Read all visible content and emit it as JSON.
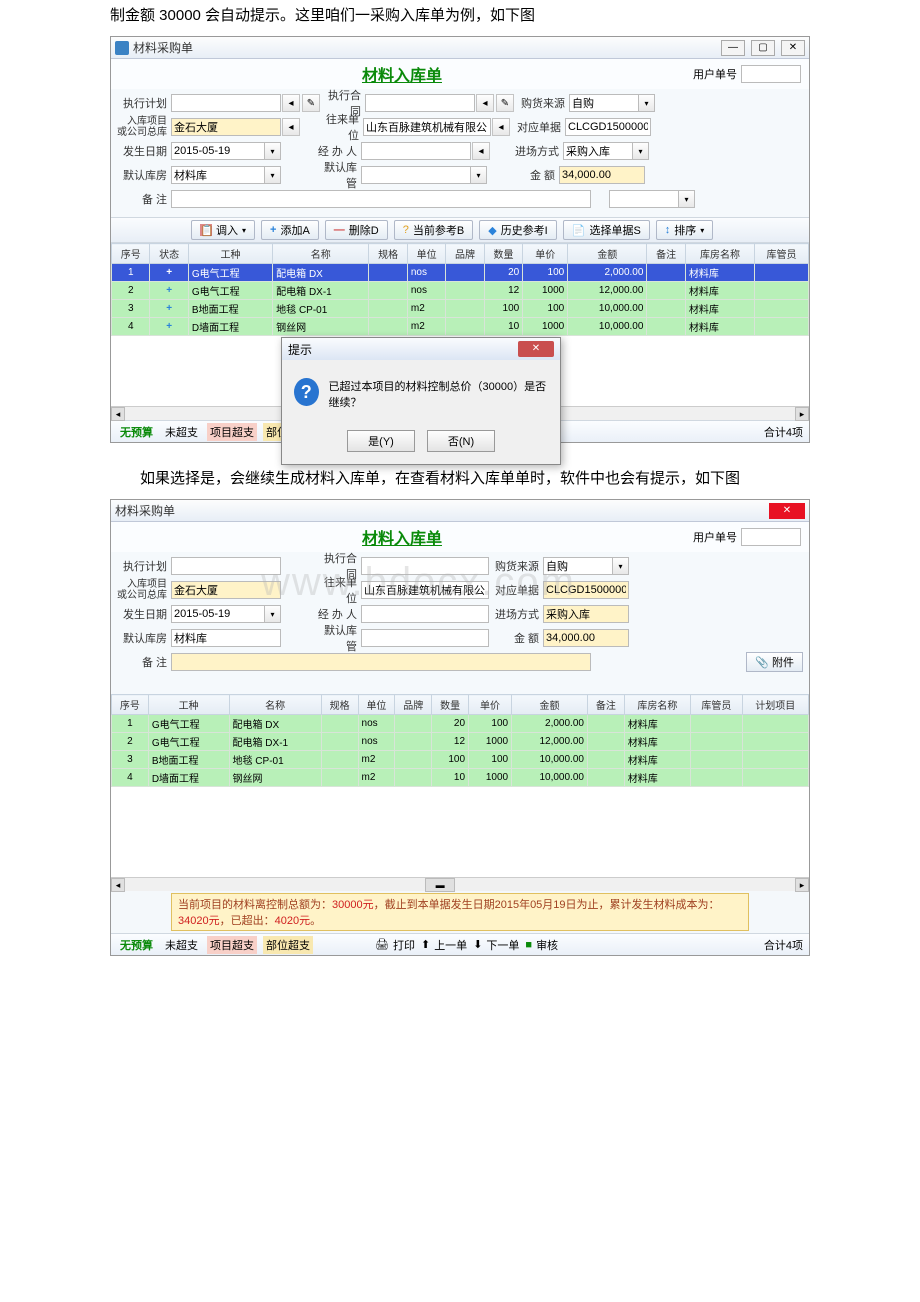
{
  "doc": {
    "para1": "制金额 30000 会自动提示。这里咱们一采购入库单为例，如下图",
    "para2": "如果选择是，会继续生成材料入库单，在查看材料入库单单时，软件中也会有提示，如下图"
  },
  "win1": {
    "title": "材料采购单",
    "page_title": "材料入库单",
    "user_no_label": "用户单号",
    "form": {
      "plan_label": "执行计划",
      "plan": "",
      "contract_label": "执行合同",
      "contract": "",
      "source_label": "购货来源",
      "source": "自购",
      "proj_label": "入库项目\n或公司总库",
      "proj": "金石大厦",
      "vendor_label": "往来单位",
      "vendor": "山东百脉建筑机械有限公司",
      "doc_label": "对应单据",
      "doc": "CLCGD150000003",
      "date_label": "发生日期",
      "date": "2015-05-19",
      "handler_label": "经 办 人",
      "handler": "",
      "intype_label": "进场方式",
      "intype": "采购入库",
      "store_label": "默认库房",
      "store": "材料库",
      "keeper_label": "默认库管",
      "keeper": "",
      "amount_label": "金    额",
      "amount": "34,000.00",
      "remark_label": "备    注",
      "remark": ""
    },
    "toolbar": {
      "import": "调入",
      "add": "添加A",
      "del": "删除D",
      "curref": "当前参考B",
      "histref": "历史参考I",
      "selbill": "选择单据S",
      "sort": "排序"
    },
    "cols": [
      "序号",
      "状态",
      "工种",
      "名称",
      "规格",
      "单位",
      "品牌",
      "数量",
      "单价",
      "金额",
      "备注",
      "库房名称",
      "库管员"
    ],
    "rows": [
      {
        "no": "1",
        "status": "+",
        "type": "G电气工程",
        "name": "配电箱 DX",
        "spec": "",
        "unit": "nos",
        "brand": "",
        "qty": "20",
        "price": "100",
        "amt": "2,000.00",
        "remark": "",
        "store": "材料库",
        "keeper": ""
      },
      {
        "no": "2",
        "status": "+",
        "type": "G电气工程",
        "name": "配电箱 DX-1",
        "spec": "",
        "unit": "nos",
        "brand": "",
        "qty": "12",
        "price": "1000",
        "amt": "12,000.00",
        "remark": "",
        "store": "材料库",
        "keeper": ""
      },
      {
        "no": "3",
        "status": "+",
        "type": "B地面工程",
        "name": "地毯 CP-01",
        "spec": "",
        "unit": "m2",
        "brand": "",
        "qty": "100",
        "price": "100",
        "amt": "10,000.00",
        "remark": "",
        "store": "材料库",
        "keeper": ""
      },
      {
        "no": "4",
        "status": "+",
        "type": "D墙面工程",
        "name": "钢丝网",
        "spec": "",
        "unit": "m2",
        "brand": "",
        "qty": "10",
        "price": "1000",
        "amt": "10,000.00",
        "remark": "",
        "store": "材料库",
        "keeper": ""
      }
    ],
    "tags": {
      "t1": "无预算",
      "t2": "未超支",
      "t3": "项目超支",
      "t4": "部位超支"
    },
    "total": "合计4项",
    "dialog": {
      "title": "提示",
      "msg": "已超过本项目的材料控制总价（30000）是否继续？",
      "yes": "是(Y)",
      "no": "否(N)"
    }
  },
  "win2": {
    "title": "材料采购单",
    "page_title": "材料入库单",
    "user_no_label": "用户单号",
    "form": {
      "plan_label": "执行计划",
      "plan": "",
      "contract_label": "执行合同",
      "contract": "",
      "source_label": "购货来源",
      "source": "自购",
      "proj_label": "入库项目\n或公司总库",
      "proj": "金石大厦",
      "vendor_label": "往来单位",
      "vendor": "山东百脉建筑机械有限公司",
      "doc_label": "对应单据",
      "doc": "CLCGD150000003",
      "date_label": "发生日期",
      "date": "2015-05-19",
      "handler_label": "经 办 人",
      "handler": "",
      "intype_label": "进场方式",
      "intype": "采购入库",
      "store_label": "默认库房",
      "store": "材料库",
      "keeper_label": "默认库管",
      "keeper": "",
      "amount_label": "金    额",
      "amount": "34,000.00",
      "remark_label": "备    注",
      "remark": "",
      "attach": "附件"
    },
    "cols": [
      "序号",
      "工种",
      "名称",
      "规格",
      "单位",
      "品牌",
      "数量",
      "单价",
      "金额",
      "备注",
      "库房名称",
      "库管员",
      "计划项目"
    ],
    "rows": [
      {
        "no": "1",
        "type": "G电气工程",
        "name": "配电箱 DX",
        "spec": "",
        "unit": "nos",
        "brand": "",
        "qty": "20",
        "price": "100",
        "amt": "2,000.00",
        "remark": "",
        "store": "材料库",
        "keeper": "",
        "plan": ""
      },
      {
        "no": "2",
        "type": "G电气工程",
        "name": "配电箱 DX-1",
        "spec": "",
        "unit": "nos",
        "brand": "",
        "qty": "12",
        "price": "1000",
        "amt": "12,000.00",
        "remark": "",
        "store": "材料库",
        "keeper": "",
        "plan": ""
      },
      {
        "no": "3",
        "type": "B地面工程",
        "name": "地毯 CP-01",
        "spec": "",
        "unit": "m2",
        "brand": "",
        "qty": "100",
        "price": "100",
        "amt": "10,000.00",
        "remark": "",
        "store": "材料库",
        "keeper": "",
        "plan": ""
      },
      {
        "no": "4",
        "type": "D墙面工程",
        "name": "钢丝网",
        "spec": "",
        "unit": "m2",
        "brand": "",
        "qty": "10",
        "price": "1000",
        "amt": "10,000.00",
        "remark": "",
        "store": "材料库",
        "keeper": "",
        "plan": ""
      }
    ],
    "status_msg_p1": "当前项目的材料离控制总额为：",
    "status_msg_v1": "30000元",
    "status_msg_p2": "，截止到本单据发生日期2015年05月19日为止，",
    "status_msg_p3": "累计发生材料成本为：",
    "status_msg_v2": "34020元",
    "status_msg_p4": "，已超出：",
    "status_msg_v3": "4020元",
    "status_msg_p5": "。",
    "tags": {
      "t1": "无预算",
      "t2": "未超支",
      "t3": "项目超支",
      "t4": "部位超支"
    },
    "footer": {
      "print": "打印",
      "prev": "上一单",
      "next": "下一单",
      "audit": "审核"
    },
    "total": "合计4项",
    "watermark": "www.bdocx.com"
  },
  "colors": {
    "row_green": "#b8f0b8",
    "row_sel": "#3858d8",
    "title_green": "#0a8a0a",
    "highlight": "#fff3c8"
  }
}
